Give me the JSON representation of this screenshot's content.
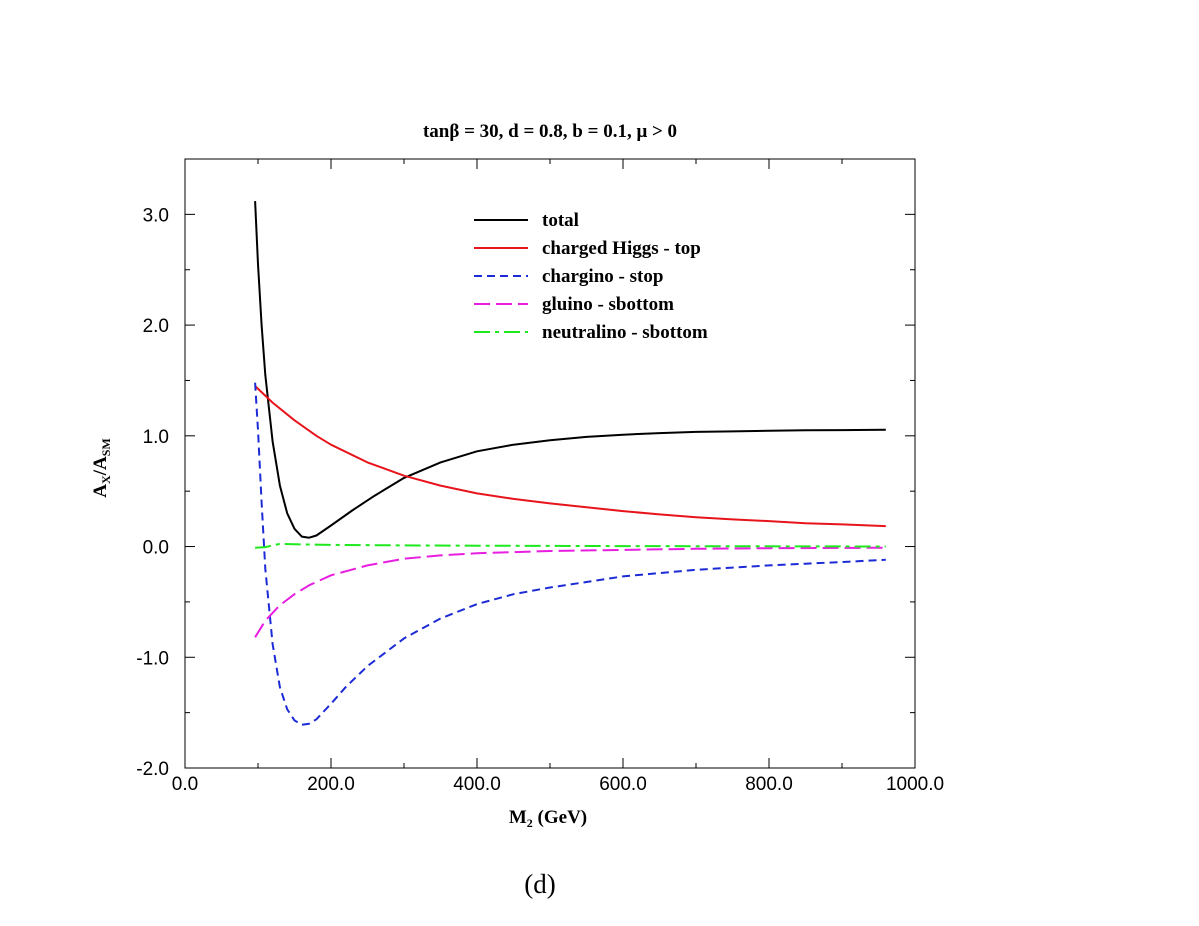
{
  "chart_data": {
    "type": "line",
    "title": "tanβ = 30, d = 0.8, b = 0.1, μ > 0",
    "xlabel": {
      "main": "M",
      "sub": "2",
      "tail": " (GeV)"
    },
    "ylabel": {
      "main": "A",
      "sub1": "X",
      "mid": "/A",
      "sub2": "SM"
    },
    "xlim": [
      0,
      1000
    ],
    "ylim": [
      -2,
      3.5
    ],
    "x_ticks": [
      0,
      200,
      400,
      600,
      800,
      1000
    ],
    "x_tick_labels": [
      "0.0",
      "200.0",
      "400.0",
      "600.0",
      "800.0",
      "1000.0"
    ],
    "y_ticks": [
      -2,
      -1,
      0,
      1,
      2,
      3
    ],
    "y_tick_labels": [
      "-2.0",
      "-1.0",
      "0.0",
      "1.0",
      "2.0",
      "3.0"
    ],
    "grid": false,
    "legend_position": "top-right",
    "series": [
      {
        "name": "total",
        "color": "#000000",
        "dash": "",
        "x": [
          96,
          100,
          105,
          110,
          120,
          130,
          140,
          150,
          160,
          170,
          180,
          200,
          230,
          260,
          300,
          350,
          400,
          450,
          500,
          550,
          600,
          650,
          700,
          750,
          800,
          850,
          900,
          960
        ],
        "y": [
          3.12,
          2.55,
          2.0,
          1.55,
          0.95,
          0.55,
          0.3,
          0.16,
          0.09,
          0.08,
          0.1,
          0.19,
          0.33,
          0.46,
          0.62,
          0.76,
          0.86,
          0.92,
          0.96,
          0.99,
          1.01,
          1.025,
          1.035,
          1.04,
          1.045,
          1.05,
          1.052,
          1.055
        ]
      },
      {
        "name": "charged Higgs - top",
        "color": "#e8141c",
        "dash": "",
        "x": [
          96,
          120,
          150,
          180,
          200,
          250,
          300,
          350,
          400,
          450,
          500,
          550,
          600,
          650,
          700,
          750,
          800,
          850,
          900,
          960
        ],
        "y": [
          1.45,
          1.3,
          1.14,
          1.0,
          0.92,
          0.76,
          0.64,
          0.55,
          0.48,
          0.43,
          0.39,
          0.355,
          0.32,
          0.29,
          0.265,
          0.245,
          0.23,
          0.21,
          0.2,
          0.185
        ]
      },
      {
        "name": "chargino - stop",
        "color": "#1c2bd6",
        "dash": "8,5",
        "x": [
          96,
          100,
          105,
          110,
          120,
          130,
          140,
          150,
          160,
          170,
          180,
          190,
          200,
          220,
          250,
          300,
          350,
          400,
          450,
          500,
          550,
          600,
          650,
          700,
          750,
          800,
          850,
          900,
          960
        ],
        "y": [
          1.48,
          1.05,
          0.4,
          -0.2,
          -0.88,
          -1.27,
          -1.47,
          -1.57,
          -1.61,
          -1.6,
          -1.56,
          -1.49,
          -1.42,
          -1.27,
          -1.08,
          -0.83,
          -0.65,
          -0.52,
          -0.43,
          -0.37,
          -0.32,
          -0.27,
          -0.24,
          -0.21,
          -0.19,
          -0.17,
          -0.155,
          -0.14,
          -0.12
        ]
      },
      {
        "name": "gluino - sbottom",
        "color": "#e81ee0",
        "dash": "16,6",
        "x": [
          96,
          110,
          130,
          150,
          170,
          200,
          250,
          300,
          350,
          400,
          500,
          600,
          700,
          800,
          900,
          960
        ],
        "y": [
          -0.82,
          -0.67,
          -0.53,
          -0.43,
          -0.35,
          -0.26,
          -0.17,
          -0.11,
          -0.08,
          -0.06,
          -0.04,
          -0.03,
          -0.02,
          -0.015,
          -0.012,
          -0.01
        ]
      },
      {
        "name": "neutralino - sbottom",
        "color": "#1ee81e",
        "dash": "16,5,4,5",
        "x": [
          96,
          110,
          130,
          150,
          200,
          300,
          400,
          600,
          800,
          960
        ],
        "y": [
          -0.01,
          -0.005,
          0.025,
          0.02,
          0.015,
          0.01,
          0.008,
          0.004,
          0.002,
          0.0
        ]
      }
    ],
    "caption": "(d)"
  }
}
